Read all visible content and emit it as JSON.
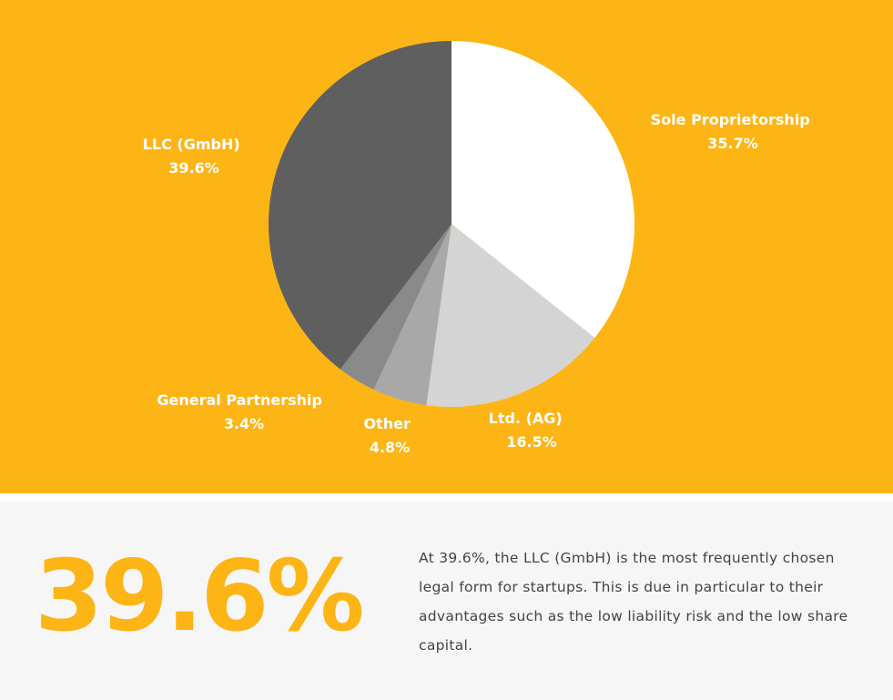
{
  "chart_data": {
    "type": "pie",
    "slices": [
      {
        "label": "Sole Proprietorship",
        "value": 35.7,
        "display": "35.7%",
        "color": "#FFFFFF"
      },
      {
        "label": "Ltd. (AG)",
        "value": 16.5,
        "display": "16.5%",
        "color": "#D4D4D4"
      },
      {
        "label": "Other",
        "value": 4.8,
        "display": "4.8%",
        "color": "#A8A8A8"
      },
      {
        "label": "General Partnership",
        "value": 3.4,
        "display": "3.4%",
        "color": "#8A8A8A"
      },
      {
        "label": "LLC (GmbH)",
        "value": 39.6,
        "display": "39.6%",
        "color": "#5F5F5F"
      }
    ],
    "start": "12 o'clock",
    "direction": "clockwise"
  },
  "colors": {
    "accent": "#FDB515",
    "panel_background": "#F6F6F6",
    "label_text": "#FFFFFF",
    "body_text": "#444444"
  },
  "highlight": {
    "value": "39.6%",
    "text": "At 39.6%, the LLC (GmbH) is the most frequently chosen legal form for startups. This is due in particular to their advantages such as the low liability risk and the low share capital."
  }
}
